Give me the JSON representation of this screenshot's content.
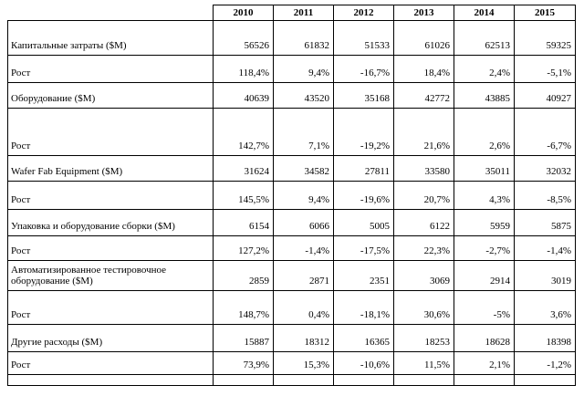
{
  "table": {
    "header": [
      "2010",
      "2011",
      "2012",
      "2013",
      "2014",
      "2015"
    ],
    "rows": [
      {
        "label": "Капитальные затраты ($M)",
        "cells": [
          "56526",
          "61832",
          "51533",
          "61026",
          "62513",
          "59325"
        ]
      },
      {
        "label": "Рост",
        "cells": [
          "118,4%",
          "9,4%",
          "-16,7%",
          "18,4%",
          "2,4%",
          "-5,1%"
        ]
      },
      {
        "label": "Оборудование ($M)",
        "cells": [
          "40639",
          "43520",
          "35168",
          "42772",
          "43885",
          "40927"
        ]
      },
      {
        "label": "Рост",
        "cells": [
          "142,7%",
          "7,1%",
          "-19,2%",
          "21,6%",
          "2,6%",
          "-6,7%"
        ]
      },
      {
        "label": "Wafer Fab Equipment ($M)",
        "cells": [
          "31624",
          "34582",
          "27811",
          "33580",
          "35011",
          "32032"
        ]
      },
      {
        "label": "Рост",
        "cells": [
          "145,5%",
          "9,4%",
          "-19,6%",
          "20,7%",
          "4,3%",
          "-8,5%"
        ]
      },
      {
        "label": "Упаковка и оборудование сборки ($M)",
        "cells": [
          "6154",
          "6066",
          "5005",
          "6122",
          "5959",
          "5875"
        ]
      },
      {
        "label": "Рост",
        "cells": [
          "127,2%",
          "-1,4%",
          "-17,5%",
          "22,3%",
          "-2,7%",
          "-1,4%"
        ]
      },
      {
        "label": "Автоматизированное тестировочное оборудование ($M)",
        "cells": [
          "2859",
          "2871",
          "2351",
          "3069",
          "2914",
          "3019"
        ]
      },
      {
        "label": "Рост",
        "cells": [
          "148,7%",
          "0,4%",
          "-18,1%",
          "30,6%",
          "-5%",
          "3,6%"
        ]
      },
      {
        "label": "Другие расходы ($M)",
        "cells": [
          "15887",
          "18312",
          "16365",
          "18253",
          "18628",
          "18398"
        ]
      },
      {
        "label": "Рост",
        "cells": [
          "73,9%",
          "15,3%",
          "-10,6%",
          "11,5%",
          "2,1%",
          "-1,2%"
        ]
      }
    ]
  }
}
